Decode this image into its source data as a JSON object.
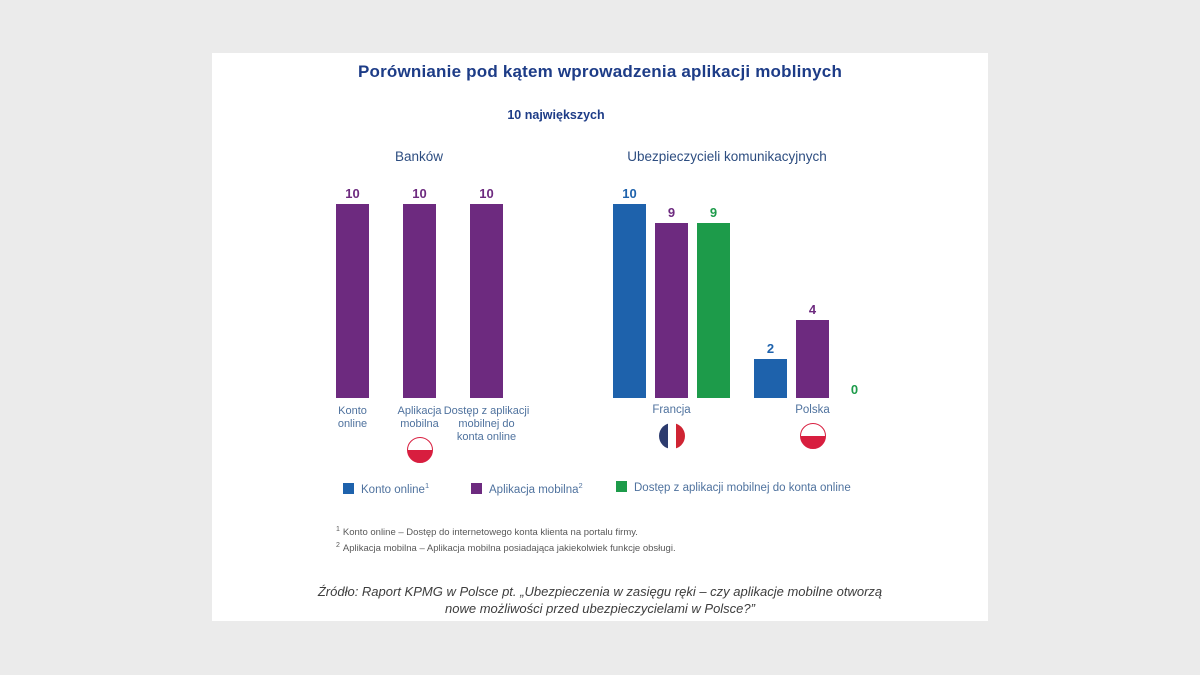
{
  "page": {
    "background": "#ebebeb",
    "card_background": "#ffffff"
  },
  "title": "Porównianie pod kątem wprowadzenia aplikacji moblinych",
  "subtitle": "10 największych",
  "colors": {
    "title_navy": "#1d3c87",
    "header_navy": "#2d4d80",
    "label_blue": "#4f729e",
    "footnote_gray": "#595959",
    "source_gray": "#3d3d3d",
    "bar_blue": "#1e62ac",
    "bar_purple": "#6d2a7f",
    "bar_green": "#1d9b4a",
    "poland_red": "#d81e3f",
    "france_navy": "#2c3b6e",
    "france_red": "#cf2433"
  },
  "chart_data": {
    "type": "bar",
    "ylim": [
      0,
      10
    ],
    "grid": false,
    "legend_position": "bottom",
    "series": [
      {
        "name": "Konto online",
        "sup": "1",
        "color": "#1e62ac"
      },
      {
        "name": "Aplikacja mobilna",
        "sup": "2",
        "color": "#6d2a7f"
      },
      {
        "name": "Dostęp z aplikacji mobilnej do konta online",
        "sup": "",
        "color": "#1d9b4a"
      }
    ],
    "groups": [
      {
        "header": "Banków",
        "mode": "single-color",
        "bar_color": "#6d2a7f",
        "categories": [
          {
            "label_lines": [
              "Konto",
              "online"
            ],
            "value": 10,
            "flag": ""
          },
          {
            "label_lines": [
              "Aplikacja",
              "mobilna"
            ],
            "value": 10,
            "flag": "poland"
          },
          {
            "label_lines": [
              "Dostęp z aplikacji",
              "mobilnej do",
              "konta online"
            ],
            "value": 10,
            "flag": ""
          }
        ]
      },
      {
        "header": "Ubezpieczycieli komunikacyjnych",
        "mode": "by-series",
        "categories": [
          {
            "label_lines": [
              "Francja"
            ],
            "flag": "france",
            "values": [
              10,
              9,
              9
            ]
          },
          {
            "label_lines": [
              "Polska"
            ],
            "flag": "poland",
            "values": [
              2,
              4,
              0
            ]
          }
        ]
      }
    ]
  },
  "footnotes": [
    {
      "sup": "1",
      "text": "Konto online – Dostęp do internetowego konta klienta na portalu firmy."
    },
    {
      "sup": "2",
      "text": "Aplikacja mobilna – Aplikacja mobilna posiadająca jakiekolwiek funkcje obsługi."
    }
  ],
  "source": {
    "line1": "Źródło: Raport KPMG w Polsce pt. „Ubezpieczenia w zasięgu ręki – czy aplikacje mobilne otworzą",
    "line2": "nowe możliwości przed ubezpieczycielami w Polsce?”"
  }
}
